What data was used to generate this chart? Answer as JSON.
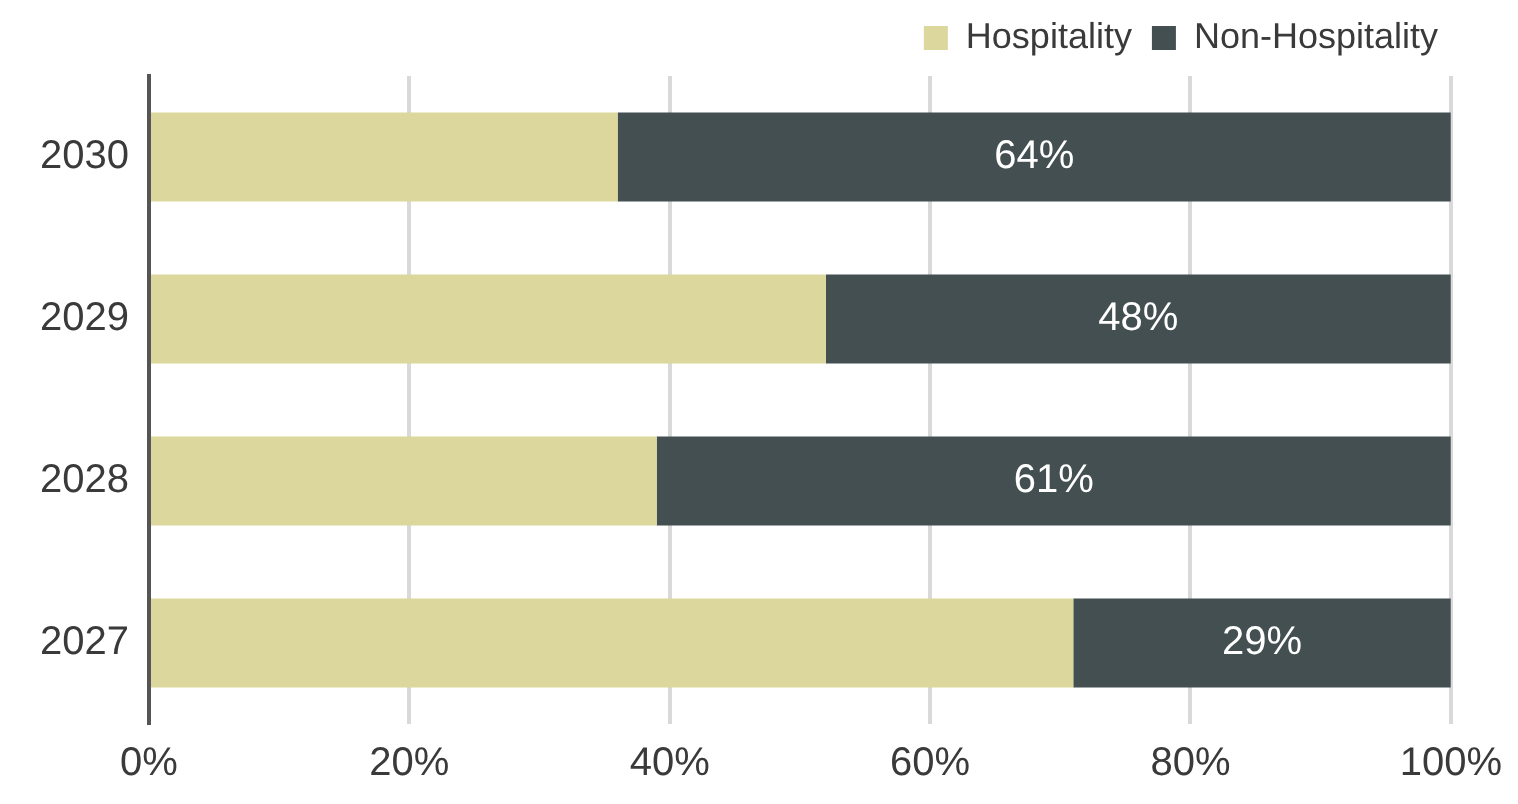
{
  "chart_data": {
    "type": "bar",
    "orientation": "horizontal",
    "stacked": true,
    "categories": [
      "2030",
      "2029",
      "2028",
      "2027"
    ],
    "series": [
      {
        "name": "Hospitality",
        "color": "#dcd79c",
        "values": [
          36,
          52,
          39,
          71
        ]
      },
      {
        "name": "Non-Hospitality",
        "color": "#434f50",
        "values": [
          64,
          48,
          61,
          29
        ],
        "value_labels": [
          "64%",
          "48%",
          "61%",
          "29%"
        ]
      }
    ],
    "xlim": [
      0,
      100
    ],
    "xticks": [
      {
        "value": 0,
        "label": "0%"
      },
      {
        "value": 20,
        "label": "20%"
      },
      {
        "value": 40,
        "label": "40%"
      },
      {
        "value": 60,
        "label": "60%"
      },
      {
        "value": 80,
        "label": "80%"
      },
      {
        "value": 100,
        "label": "100%"
      }
    ],
    "grid": "x",
    "legend": "top right"
  }
}
